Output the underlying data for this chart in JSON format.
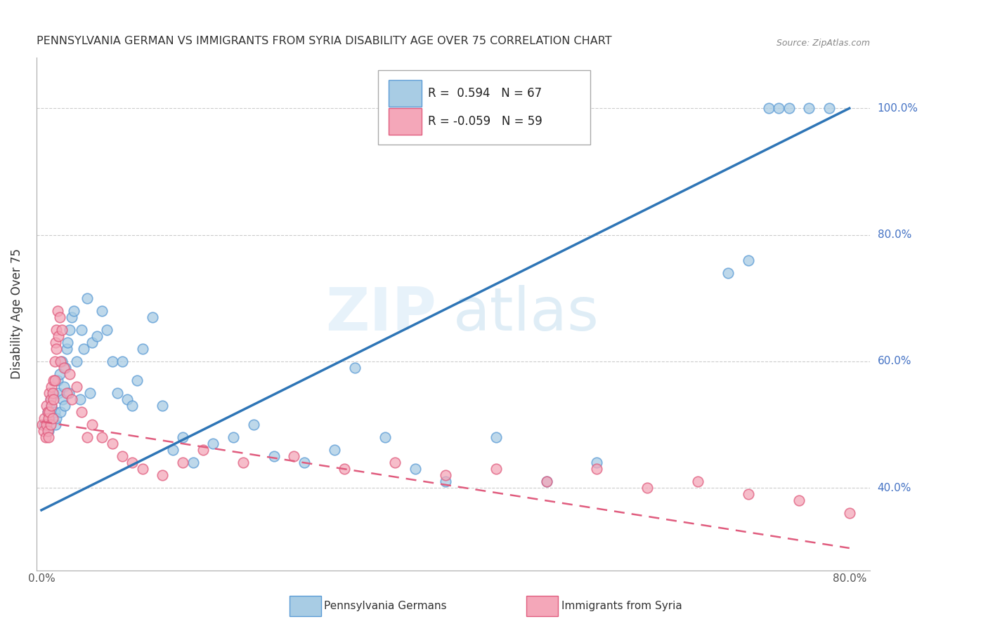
{
  "title": "PENNSYLVANIA GERMAN VS IMMIGRANTS FROM SYRIA DISABILITY AGE OVER 75 CORRELATION CHART",
  "source": "Source: ZipAtlas.com",
  "ylabel": "Disability Age Over 75",
  "legend_label1": "Pennsylvania Germans",
  "legend_label2": "Immigrants from Syria",
  "R1": 0.594,
  "N1": 67,
  "R2": -0.059,
  "N2": 59,
  "xlim": [
    -0.005,
    0.82
  ],
  "ylim": [
    0.27,
    1.08
  ],
  "xtick_positions": [
    0.0,
    0.1,
    0.2,
    0.3,
    0.4,
    0.5,
    0.6,
    0.7,
    0.8
  ],
  "xtick_labels": [
    "0.0%",
    "",
    "",
    "",
    "",
    "",
    "",
    "",
    "80.0%"
  ],
  "ytick_positions": [
    0.4,
    0.6,
    0.8,
    1.0
  ],
  "ytick_labels": [
    "40.0%",
    "60.0%",
    "80.0%",
    "100.0%"
  ],
  "color_blue": "#a8cce4",
  "color_blue_edge": "#5b9bd5",
  "color_blue_line": "#2e75b6",
  "color_pink": "#f4a7b9",
  "color_pink_edge": "#e05c7e",
  "color_pink_line": "#e05c7e",
  "watermark_zip": "ZIP",
  "watermark_atlas": "atlas",
  "blue_scatter_x": [
    0.003,
    0.006,
    0.007,
    0.008,
    0.009,
    0.01,
    0.012,
    0.013,
    0.014,
    0.015,
    0.016,
    0.017,
    0.018,
    0.019,
    0.02,
    0.021,
    0.022,
    0.023,
    0.024,
    0.025,
    0.026,
    0.027,
    0.028,
    0.03,
    0.032,
    0.035,
    0.038,
    0.04,
    0.042,
    0.045,
    0.048,
    0.05,
    0.055,
    0.06,
    0.065,
    0.07,
    0.075,
    0.08,
    0.085,
    0.09,
    0.095,
    0.1,
    0.11,
    0.12,
    0.13,
    0.14,
    0.15,
    0.17,
    0.19,
    0.21,
    0.23,
    0.26,
    0.29,
    0.31,
    0.34,
    0.37,
    0.4,
    0.45,
    0.5,
    0.55,
    0.68,
    0.7,
    0.72,
    0.73,
    0.74,
    0.76,
    0.78
  ],
  "blue_scatter_y": [
    0.5,
    0.52,
    0.49,
    0.51,
    0.54,
    0.53,
    0.55,
    0.52,
    0.5,
    0.51,
    0.57,
    0.55,
    0.58,
    0.52,
    0.6,
    0.54,
    0.56,
    0.53,
    0.59,
    0.62,
    0.63,
    0.55,
    0.65,
    0.67,
    0.68,
    0.6,
    0.54,
    0.65,
    0.62,
    0.7,
    0.55,
    0.63,
    0.64,
    0.68,
    0.65,
    0.6,
    0.55,
    0.6,
    0.54,
    0.53,
    0.57,
    0.62,
    0.67,
    0.53,
    0.46,
    0.48,
    0.44,
    0.47,
    0.48,
    0.5,
    0.45,
    0.44,
    0.46,
    0.59,
    0.48,
    0.43,
    0.41,
    0.48,
    0.41,
    0.44,
    0.74,
    0.76,
    1.0,
    1.0,
    1.0,
    1.0,
    1.0
  ],
  "pink_scatter_x": [
    0.001,
    0.002,
    0.003,
    0.004,
    0.005,
    0.005,
    0.006,
    0.006,
    0.007,
    0.007,
    0.008,
    0.008,
    0.009,
    0.009,
    0.01,
    0.01,
    0.011,
    0.011,
    0.012,
    0.012,
    0.013,
    0.013,
    0.014,
    0.015,
    0.015,
    0.016,
    0.017,
    0.018,
    0.019,
    0.02,
    0.022,
    0.025,
    0.028,
    0.03,
    0.035,
    0.04,
    0.045,
    0.05,
    0.06,
    0.07,
    0.08,
    0.09,
    0.1,
    0.12,
    0.14,
    0.16,
    0.2,
    0.25,
    0.3,
    0.35,
    0.4,
    0.45,
    0.5,
    0.55,
    0.6,
    0.65,
    0.7,
    0.75,
    0.8
  ],
  "pink_scatter_y": [
    0.5,
    0.49,
    0.51,
    0.48,
    0.53,
    0.5,
    0.52,
    0.49,
    0.51,
    0.48,
    0.55,
    0.52,
    0.54,
    0.5,
    0.56,
    0.53,
    0.55,
    0.51,
    0.57,
    0.54,
    0.6,
    0.57,
    0.63,
    0.65,
    0.62,
    0.68,
    0.64,
    0.67,
    0.6,
    0.65,
    0.59,
    0.55,
    0.58,
    0.54,
    0.56,
    0.52,
    0.48,
    0.5,
    0.48,
    0.47,
    0.45,
    0.44,
    0.43,
    0.42,
    0.44,
    0.46,
    0.44,
    0.45,
    0.43,
    0.44,
    0.42,
    0.43,
    0.41,
    0.43,
    0.4,
    0.41,
    0.39,
    0.38,
    0.36
  ],
  "blue_line_x0": 0.0,
  "blue_line_y0": 0.365,
  "blue_line_x1": 0.8,
  "blue_line_y1": 1.0,
  "pink_line_x0": 0.0,
  "pink_line_y0": 0.505,
  "pink_line_x1": 0.8,
  "pink_line_y1": 0.305
}
